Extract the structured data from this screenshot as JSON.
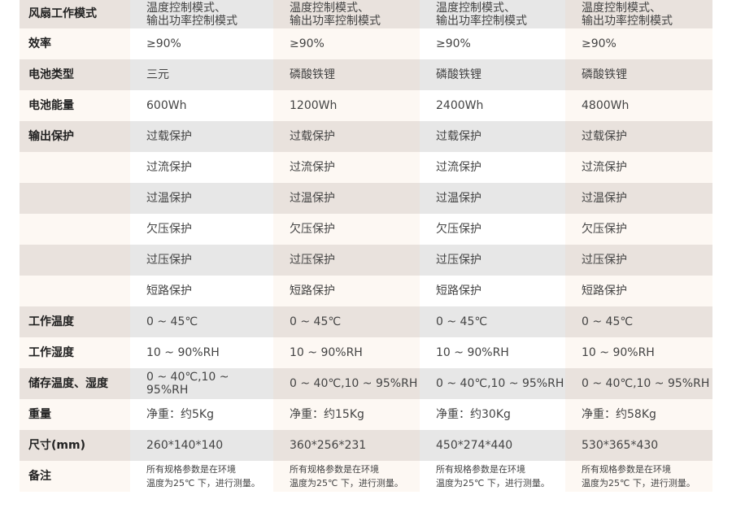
{
  "rows": [
    {
      "label": "风扇工作模式",
      "values": [
        [
          "温度控制模式、",
          "输出功率控制模式"
        ],
        [
          "温度控制模式、",
          "输出功率控制模式"
        ],
        [
          "温度控制模式、",
          "输出功率控制模式"
        ],
        [
          "温度控制模式、",
          "输出功率控制模式"
        ]
      ]
    },
    {
      "label": "效率",
      "values": [
        [
          "≥90%"
        ],
        [
          "≥90%"
        ],
        [
          "≥90%"
        ],
        [
          "≥90%"
        ]
      ]
    },
    {
      "label": "电池类型",
      "values": [
        [
          "三元"
        ],
        [
          "磷酸铁锂"
        ],
        [
          "磷酸铁锂"
        ],
        [
          "磷酸铁锂"
        ]
      ]
    },
    {
      "label": "电池能量",
      "values": [
        [
          "600Wh"
        ],
        [
          "1200Wh"
        ],
        [
          "2400Wh"
        ],
        [
          "4800Wh"
        ]
      ]
    },
    {
      "label": "输出保护",
      "values": [
        [
          "过载保护"
        ],
        [
          "过载保护"
        ],
        [
          "过载保护"
        ],
        [
          "过载保护"
        ]
      ]
    },
    {
      "label": "",
      "values": [
        [
          "过流保护"
        ],
        [
          "过流保护"
        ],
        [
          "过流保护"
        ],
        [
          "过流保护"
        ]
      ]
    },
    {
      "label": "",
      "values": [
        [
          "过温保护"
        ],
        [
          "过温保护"
        ],
        [
          "过温保护"
        ],
        [
          "过温保护"
        ]
      ]
    },
    {
      "label": "",
      "values": [
        [
          "欠压保护"
        ],
        [
          "欠压保护"
        ],
        [
          "欠压保护"
        ],
        [
          "欠压保护"
        ]
      ]
    },
    {
      "label": "",
      "values": [
        [
          "过压保护"
        ],
        [
          "过压保护"
        ],
        [
          "过压保护"
        ],
        [
          "过压保护"
        ]
      ]
    },
    {
      "label": "",
      "values": [
        [
          "短路保护"
        ],
        [
          "短路保护"
        ],
        [
          "短路保护"
        ],
        [
          "短路保护"
        ]
      ]
    },
    {
      "label": "工作温度",
      "values": [
        [
          "0 ~ 45℃"
        ],
        [
          "0 ~ 45℃"
        ],
        [
          "0 ~ 45℃"
        ],
        [
          "0 ~ 45℃"
        ]
      ]
    },
    {
      "label": "工作湿度",
      "values": [
        [
          "10 ~ 90%RH"
        ],
        [
          "10 ~ 90%RH"
        ],
        [
          "10 ~ 90%RH"
        ],
        [
          "10 ~ 90%RH"
        ]
      ]
    },
    {
      "label": "储存温度、湿度",
      "values": [
        [
          "0 ~ 40℃,10 ~ 95%RH"
        ],
        [
          "0 ~ 40℃,10 ~ 95%RH"
        ],
        [
          "0 ~ 40℃,10 ~ 95%RH"
        ],
        [
          "0 ~ 40℃,10 ~ 95%RH"
        ]
      ]
    },
    {
      "label": "重量",
      "values": [
        [
          "净重：约5Kg"
        ],
        [
          "净重：约15Kg"
        ],
        [
          "净重：约30Kg"
        ],
        [
          "净重：约58Kg"
        ]
      ]
    },
    {
      "label": "尺寸(mm)",
      "values": [
        [
          "260*140*140"
        ],
        [
          "360*256*231"
        ],
        [
          "450*274*440"
        ],
        [
          "530*365*430"
        ]
      ]
    },
    {
      "label": "备注",
      "note": true,
      "values": [
        [
          "所有规格参数是在环境",
          "温度为25℃ 下，进行测量。"
        ],
        [
          "所有规格参数是在环境",
          "温度为25℃ 下，进行测量。"
        ],
        [
          "所有规格参数是在环境",
          "温度为25℃ 下，进行测量。"
        ],
        [
          "所有规格参数是在环境",
          "温度为25℃ 下，进行测量。"
        ]
      ]
    }
  ]
}
